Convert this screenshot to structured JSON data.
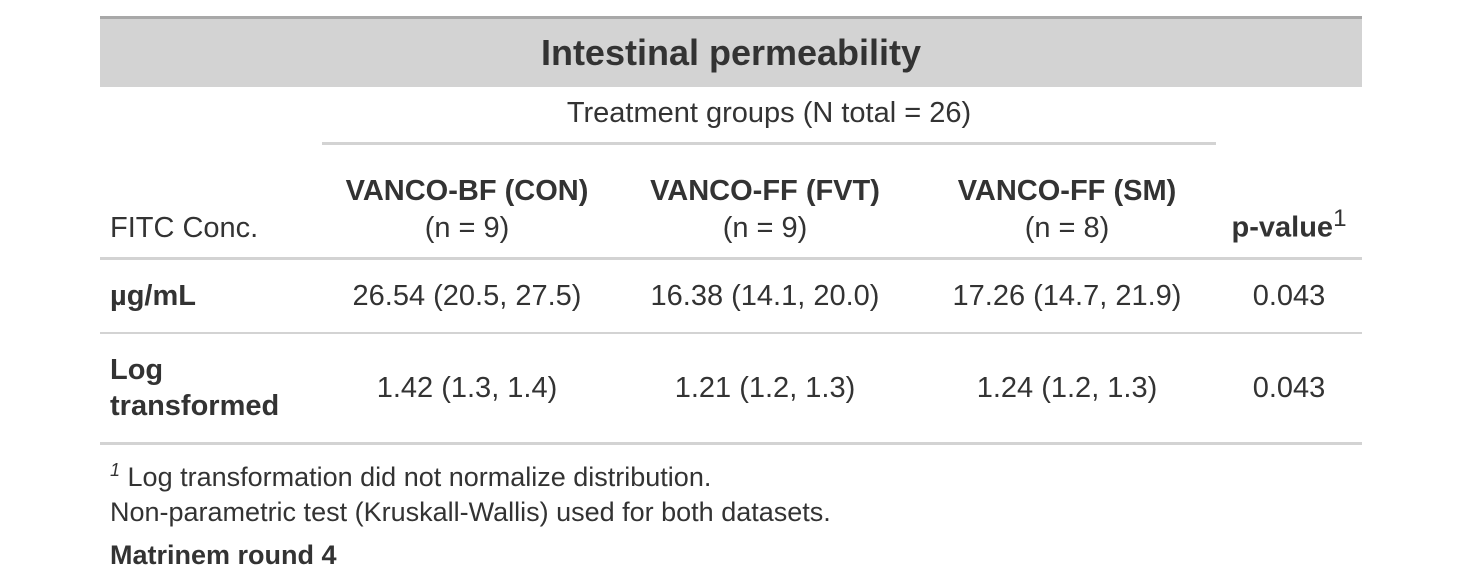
{
  "title": "Intestinal permeability",
  "spanner": "Treatment groups (N total = 26)",
  "columns": {
    "label": "FITC Conc.",
    "groups": [
      {
        "name": "VANCO-BF (CON)",
        "n": "(n = 9)"
      },
      {
        "name": "VANCO-FF (FVT)",
        "n": "(n = 9)"
      },
      {
        "name": "VANCO-FF (SM)",
        "n": "(n = 8)"
      }
    ],
    "pvalue": "p-value",
    "pvalue_mark": "1"
  },
  "rows": [
    {
      "label": "µg/mL",
      "values": [
        "26.54 (20.5, 27.5)",
        "16.38 (14.1, 20.0)",
        "17.26 (14.7, 21.9)"
      ],
      "p": "0.043"
    },
    {
      "label": "Log transformed",
      "values": [
        "1.42 (1.3, 1.4)",
        "1.21 (1.2, 1.3)",
        "1.24 (1.2, 1.3)"
      ],
      "p": "0.043"
    }
  ],
  "footnote": {
    "mark": "1",
    "line1": "Log transformation did not normalize distribution.",
    "line2": "Non-parametric test (Kruskall-Wallis) used for both datasets."
  },
  "source_note": "Matrinem round 4"
}
